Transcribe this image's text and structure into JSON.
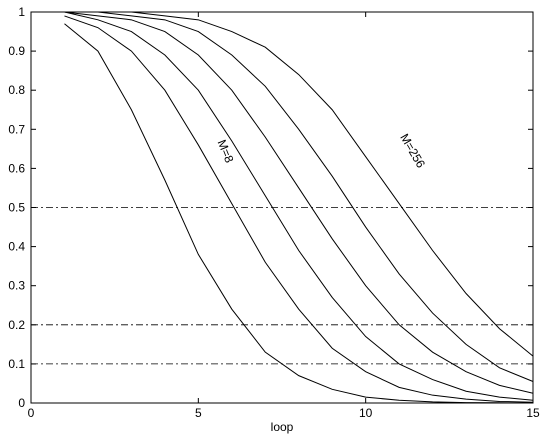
{
  "chart_data": {
    "type": "line",
    "title": "",
    "xlabel": "loop",
    "ylabel": "",
    "xlim": [
      0,
      15
    ],
    "ylim": [
      0,
      1
    ],
    "grid": false,
    "legend": "none",
    "x_ticks": [
      0,
      5,
      10,
      15
    ],
    "y_ticks": [
      0,
      0.1,
      0.2,
      0.3,
      0.4,
      0.5,
      0.6,
      0.7,
      0.8,
      0.9,
      1
    ],
    "x": [
      1,
      2,
      3,
      4,
      5,
      6,
      7,
      8,
      9,
      10,
      11,
      12,
      13,
      14,
      15
    ],
    "series": [
      {
        "values": [
          0.97,
          0.9,
          0.75,
          0.57,
          0.38,
          0.24,
          0.13,
          0.07,
          0.035,
          0.015,
          0.007,
          0.003,
          0.001,
          0.0005,
          0.0002
        ]
      },
      {
        "values": [
          0.99,
          0.96,
          0.9,
          0.8,
          0.66,
          0.51,
          0.36,
          0.24,
          0.14,
          0.08,
          0.04,
          0.02,
          0.01,
          0.004,
          0.002
        ]
      },
      {
        "values": [
          1.0,
          0.98,
          0.95,
          0.89,
          0.8,
          0.67,
          0.53,
          0.39,
          0.27,
          0.17,
          0.1,
          0.06,
          0.03,
          0.015,
          0.007
        ]
      },
      {
        "values": [
          1.0,
          0.99,
          0.98,
          0.95,
          0.89,
          0.8,
          0.68,
          0.55,
          0.42,
          0.3,
          0.2,
          0.13,
          0.08,
          0.045,
          0.025
        ]
      },
      {
        "values": [
          1.0,
          1.0,
          0.99,
          0.98,
          0.95,
          0.89,
          0.81,
          0.7,
          0.58,
          0.45,
          0.33,
          0.23,
          0.15,
          0.09,
          0.055
        ]
      },
      {
        "values": [
          1.0,
          1.0,
          1.0,
          0.99,
          0.98,
          0.95,
          0.91,
          0.84,
          0.75,
          0.63,
          0.51,
          0.39,
          0.28,
          0.19,
          0.12
        ]
      }
    ],
    "reference_lines": [
      0.5,
      0.2,
      0.1
    ],
    "annotations": [
      {
        "text": "M=8",
        "x": 5.7,
        "y": 0.64,
        "rotate": 68
      },
      {
        "text": "M=256",
        "x": 11.3,
        "y": 0.64,
        "rotate": 60
      }
    ]
  }
}
